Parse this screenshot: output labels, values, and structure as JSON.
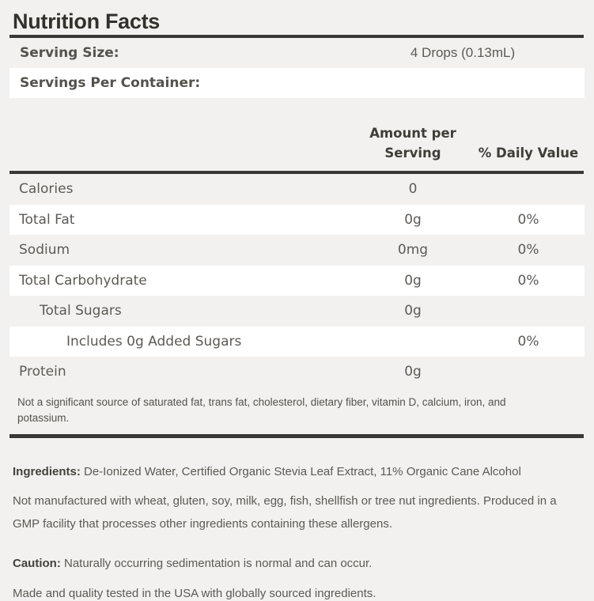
{
  "nutrition_label": {
    "title": "Nutrition Facts",
    "serving_size": {
      "label": "Serving Size:",
      "value": "4 Drops (0.13mL)"
    },
    "servings_per_container": {
      "label": "Servings Per Container:"
    },
    "column_headers": {
      "amount_line1": "Amount per",
      "amount_line2": "Serving",
      "daily_value": "% Daily Value"
    },
    "rows": [
      {
        "name": "Calories",
        "amount": "0",
        "daily_value": "",
        "indent": 0,
        "bg": "gray"
      },
      {
        "name": "Total Fat",
        "amount": "0g",
        "daily_value": "0%",
        "indent": 0,
        "bg": "white"
      },
      {
        "name": "Sodium",
        "amount": "0mg",
        "daily_value": "0%",
        "indent": 0,
        "bg": "gray"
      },
      {
        "name": "Total Carbohydrate",
        "amount": "0g",
        "daily_value": "0%",
        "indent": 0,
        "bg": "white"
      },
      {
        "name": "Total Sugars",
        "amount": "0g",
        "daily_value": "",
        "indent": 1,
        "bg": "gray"
      },
      {
        "name": "Includes 0g Added Sugars",
        "amount": "",
        "daily_value": "0%",
        "indent": 2,
        "bg": "white"
      },
      {
        "name": "Protein",
        "amount": "0g",
        "daily_value": "",
        "indent": 0,
        "bg": "gray"
      }
    ],
    "footnote": "Not a significant source of saturated fat, trans fat, cholesterol, dietary fiber, vitamin D, calcium, iron, and potassium.",
    "ingredients": {
      "label": "Ingredients:",
      "text": " De-Ionized Water, Certified Organic Stevia Leaf Extract, 11% Organic Cane Alcohol"
    },
    "allergen_statement": "Not manufactured with wheat, gluten, soy, milk, egg, fish, shellfish or tree nut ingredients. Produced in a GMP facility that processes other ingredients containing these allergens.",
    "caution": {
      "label": "Caution:",
      "text": " Naturally occurring sedimentation is normal and can occur."
    },
    "origin_statement": "Made and quality tested in the USA with globally sourced ingredients."
  },
  "colors": {
    "page_background": "#f2f1ef",
    "stripe_white": "#ffffff",
    "rule_dark": "#3a3835",
    "title_text": "#34302c",
    "body_text": "#5d5a55"
  }
}
